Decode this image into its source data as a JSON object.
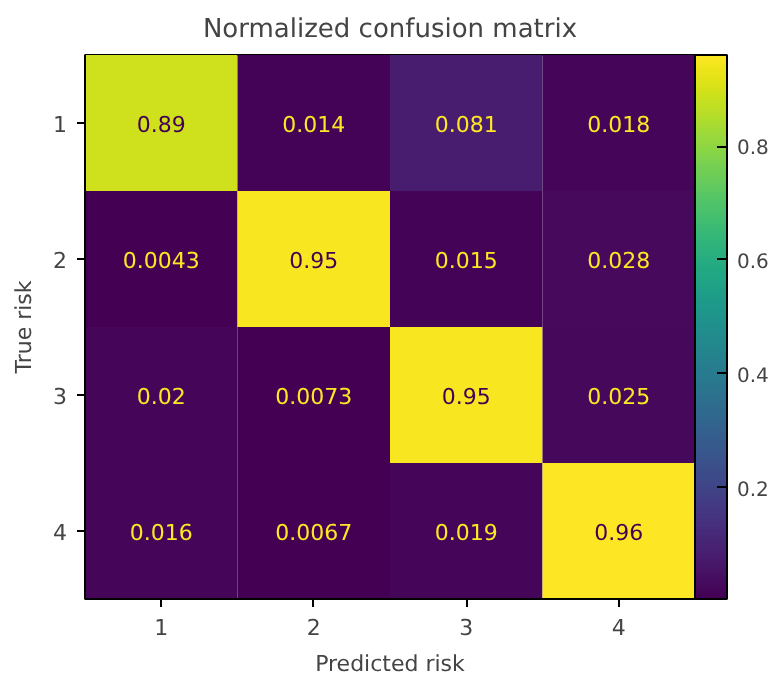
{
  "chart_data": {
    "type": "heatmap",
    "title": "Normalized confusion matrix",
    "xlabel": "Predicted risk",
    "ylabel": "True risk",
    "categories": [
      "1",
      "2",
      "3",
      "4"
    ],
    "y_categories": [
      "1",
      "2",
      "3",
      "4"
    ],
    "cells": [
      [
        0.89,
        0.014,
        0.081,
        0.018
      ],
      [
        0.0043,
        0.95,
        0.015,
        0.028
      ],
      [
        0.02,
        0.0073,
        0.95,
        0.025
      ],
      [
        0.016,
        0.0067,
        0.019,
        0.96
      ]
    ],
    "clim": [
      0.0043,
      0.96
    ],
    "cticks": [
      0.2,
      0.4,
      0.6,
      0.8
    ],
    "data_labels": true,
    "grid": false
  }
}
